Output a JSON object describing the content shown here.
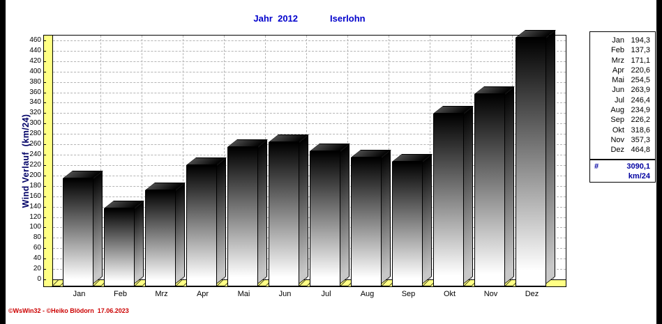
{
  "title": {
    "left": "Jahr  2012",
    "right": "Iserlohn"
  },
  "y_axis_title": "Wind Verlauf  (km/24)",
  "chart_data": {
    "type": "bar",
    "title": "Jahr 2012 Iserlohn",
    "ylabel": "Wind Verlauf (km/24)",
    "categories": [
      "Jan",
      "Feb",
      "Mrz",
      "Apr",
      "Mai",
      "Jun",
      "Jul",
      "Aug",
      "Sep",
      "Okt",
      "Nov",
      "Dez"
    ],
    "values": [
      194.3,
      137.3,
      171.1,
      220.6,
      254.5,
      263.9,
      246.4,
      234.9,
      226.2,
      318.6,
      357.3,
      464.8
    ],
    "value_labels": [
      "194,3",
      "137,3",
      "171,1",
      "220,6",
      "254,5",
      "263,9",
      "246,4",
      "234,9",
      "226,2",
      "318,6",
      "357,3",
      "464,8"
    ],
    "ylim": [
      0,
      460
    ],
    "ytick_step": 20,
    "grid": true,
    "legend_position": "right",
    "bar_style": "3d-gradient-black-white"
  },
  "totals": {
    "symbol": "#",
    "value": "3090,1",
    "unit": "km/24"
  },
  "footer": {
    "credit": "©WsWin32 - ©Heiko Blödorn  17.06.2023"
  },
  "colors": {
    "title_text": "#0000cc",
    "axis_title_text": "#000066",
    "total_text": "#0000a0",
    "axis_strip": "#ffff84",
    "floor": "#ffff84",
    "gridline": "#b4b4b4",
    "credit_text": "#cc0000",
    "frame": "#000000"
  }
}
